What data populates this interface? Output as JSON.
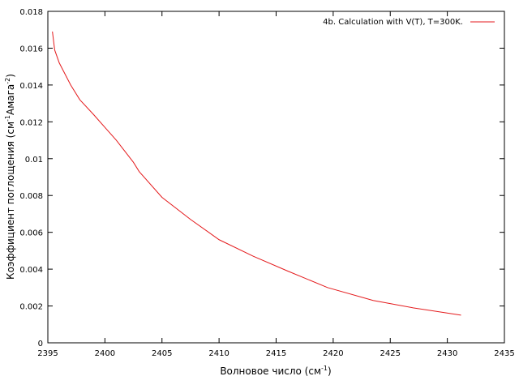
{
  "chart_data": {
    "type": "line",
    "title": "",
    "xlabel": "Волновое число (см",
    "xlabel_sup": "-1",
    "xlabel_end": ")",
    "ylabel_part1": "Коэффициент поглощения (см",
    "ylabel_sup1": "-1",
    "ylabel_part2": "Амага",
    "ylabel_sup2": "-2",
    "ylabel_end": ")",
    "xlim": [
      2395,
      2435
    ],
    "ylim": [
      0,
      0.018
    ],
    "x_ticks": [
      2395,
      2400,
      2405,
      2410,
      2415,
      2420,
      2425,
      2430,
      2435
    ],
    "x_tick_labels": [
      "2395",
      "2400",
      "2405",
      "2410",
      "2415",
      "2420",
      "2425",
      "2430",
      "2435"
    ],
    "y_ticks": [
      0,
      0.002,
      0.004,
      0.006,
      0.008,
      0.01,
      0.012,
      0.014,
      0.016,
      0.018
    ],
    "y_tick_labels": [
      "0",
      "0.002",
      "0.004",
      "0.006",
      "0.008",
      "0.01",
      "0.012",
      "0.014",
      "0.016",
      "0.018"
    ],
    "grid": false,
    "legend_position": "top-right",
    "series": [
      {
        "name": "4b. Calculation with V(T), T=300K.",
        "color": "#e41a1c",
        "x": [
          2395.4,
          2395.6,
          2396.0,
          2396.5,
          2397.0,
          2397.8,
          2399.0,
          2400.0,
          2401.0,
          2402.5,
          2403.0,
          2405.0,
          2407.5,
          2410.0,
          2413.0,
          2416.0,
          2419.5,
          2423.5,
          2427.0,
          2431.2
        ],
        "y": [
          0.0169,
          0.0159,
          0.0152,
          0.0146,
          0.014,
          0.0132,
          0.0124,
          0.0117,
          0.011,
          0.0098,
          0.0093,
          0.0079,
          0.0067,
          0.0056,
          0.0047,
          0.0039,
          0.003,
          0.0023,
          0.0019,
          0.0015
        ]
      }
    ]
  }
}
